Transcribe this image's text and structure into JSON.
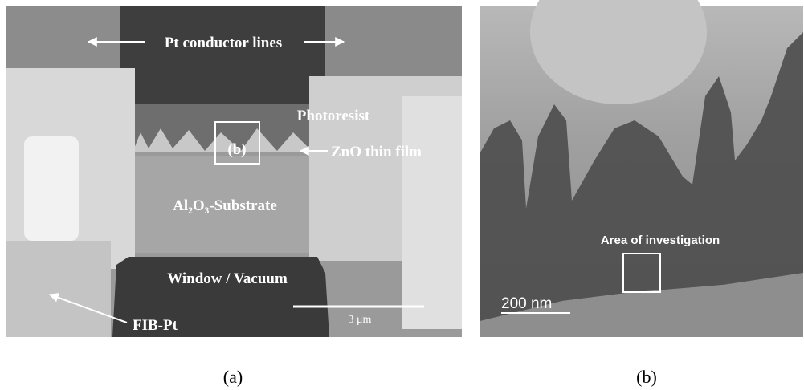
{
  "panel_a": {
    "pt_lines": "Pt conductor lines",
    "photoresist": "Photoresist",
    "zno": "ZnO thin film",
    "box": "(b)",
    "substrate": "Al₂O₃-Substrate",
    "window": "Window / Vacuum",
    "fib": "FIB-Pt",
    "scale": "3 μm",
    "caption": "(a)"
  },
  "panel_b": {
    "area": "Area of investigation",
    "scale": "200 nm",
    "caption": "(b)"
  }
}
